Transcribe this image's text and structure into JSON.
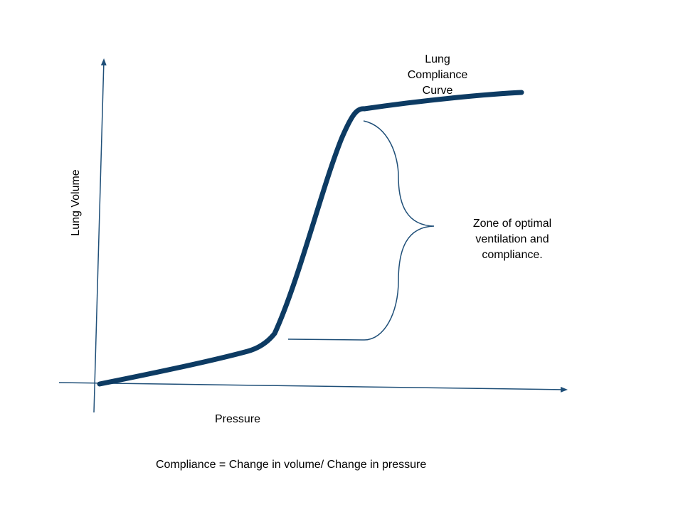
{
  "diagram": {
    "title_lines": [
      "Lung",
      "Compliance",
      "Curve"
    ],
    "x_axis_label": "Pressure",
    "y_axis_label": "Lung Volume",
    "zone_label_lines": [
      "Zone of optimal",
      "ventilation and",
      "compliance."
    ],
    "formula": "Compliance = Change in volume/ Change in pressure",
    "colors": {
      "curve": "#0d3b63",
      "axes": "#1f4f78",
      "brace": "#1f4f78",
      "text": "#000000",
      "background": "#ffffff"
    }
  }
}
